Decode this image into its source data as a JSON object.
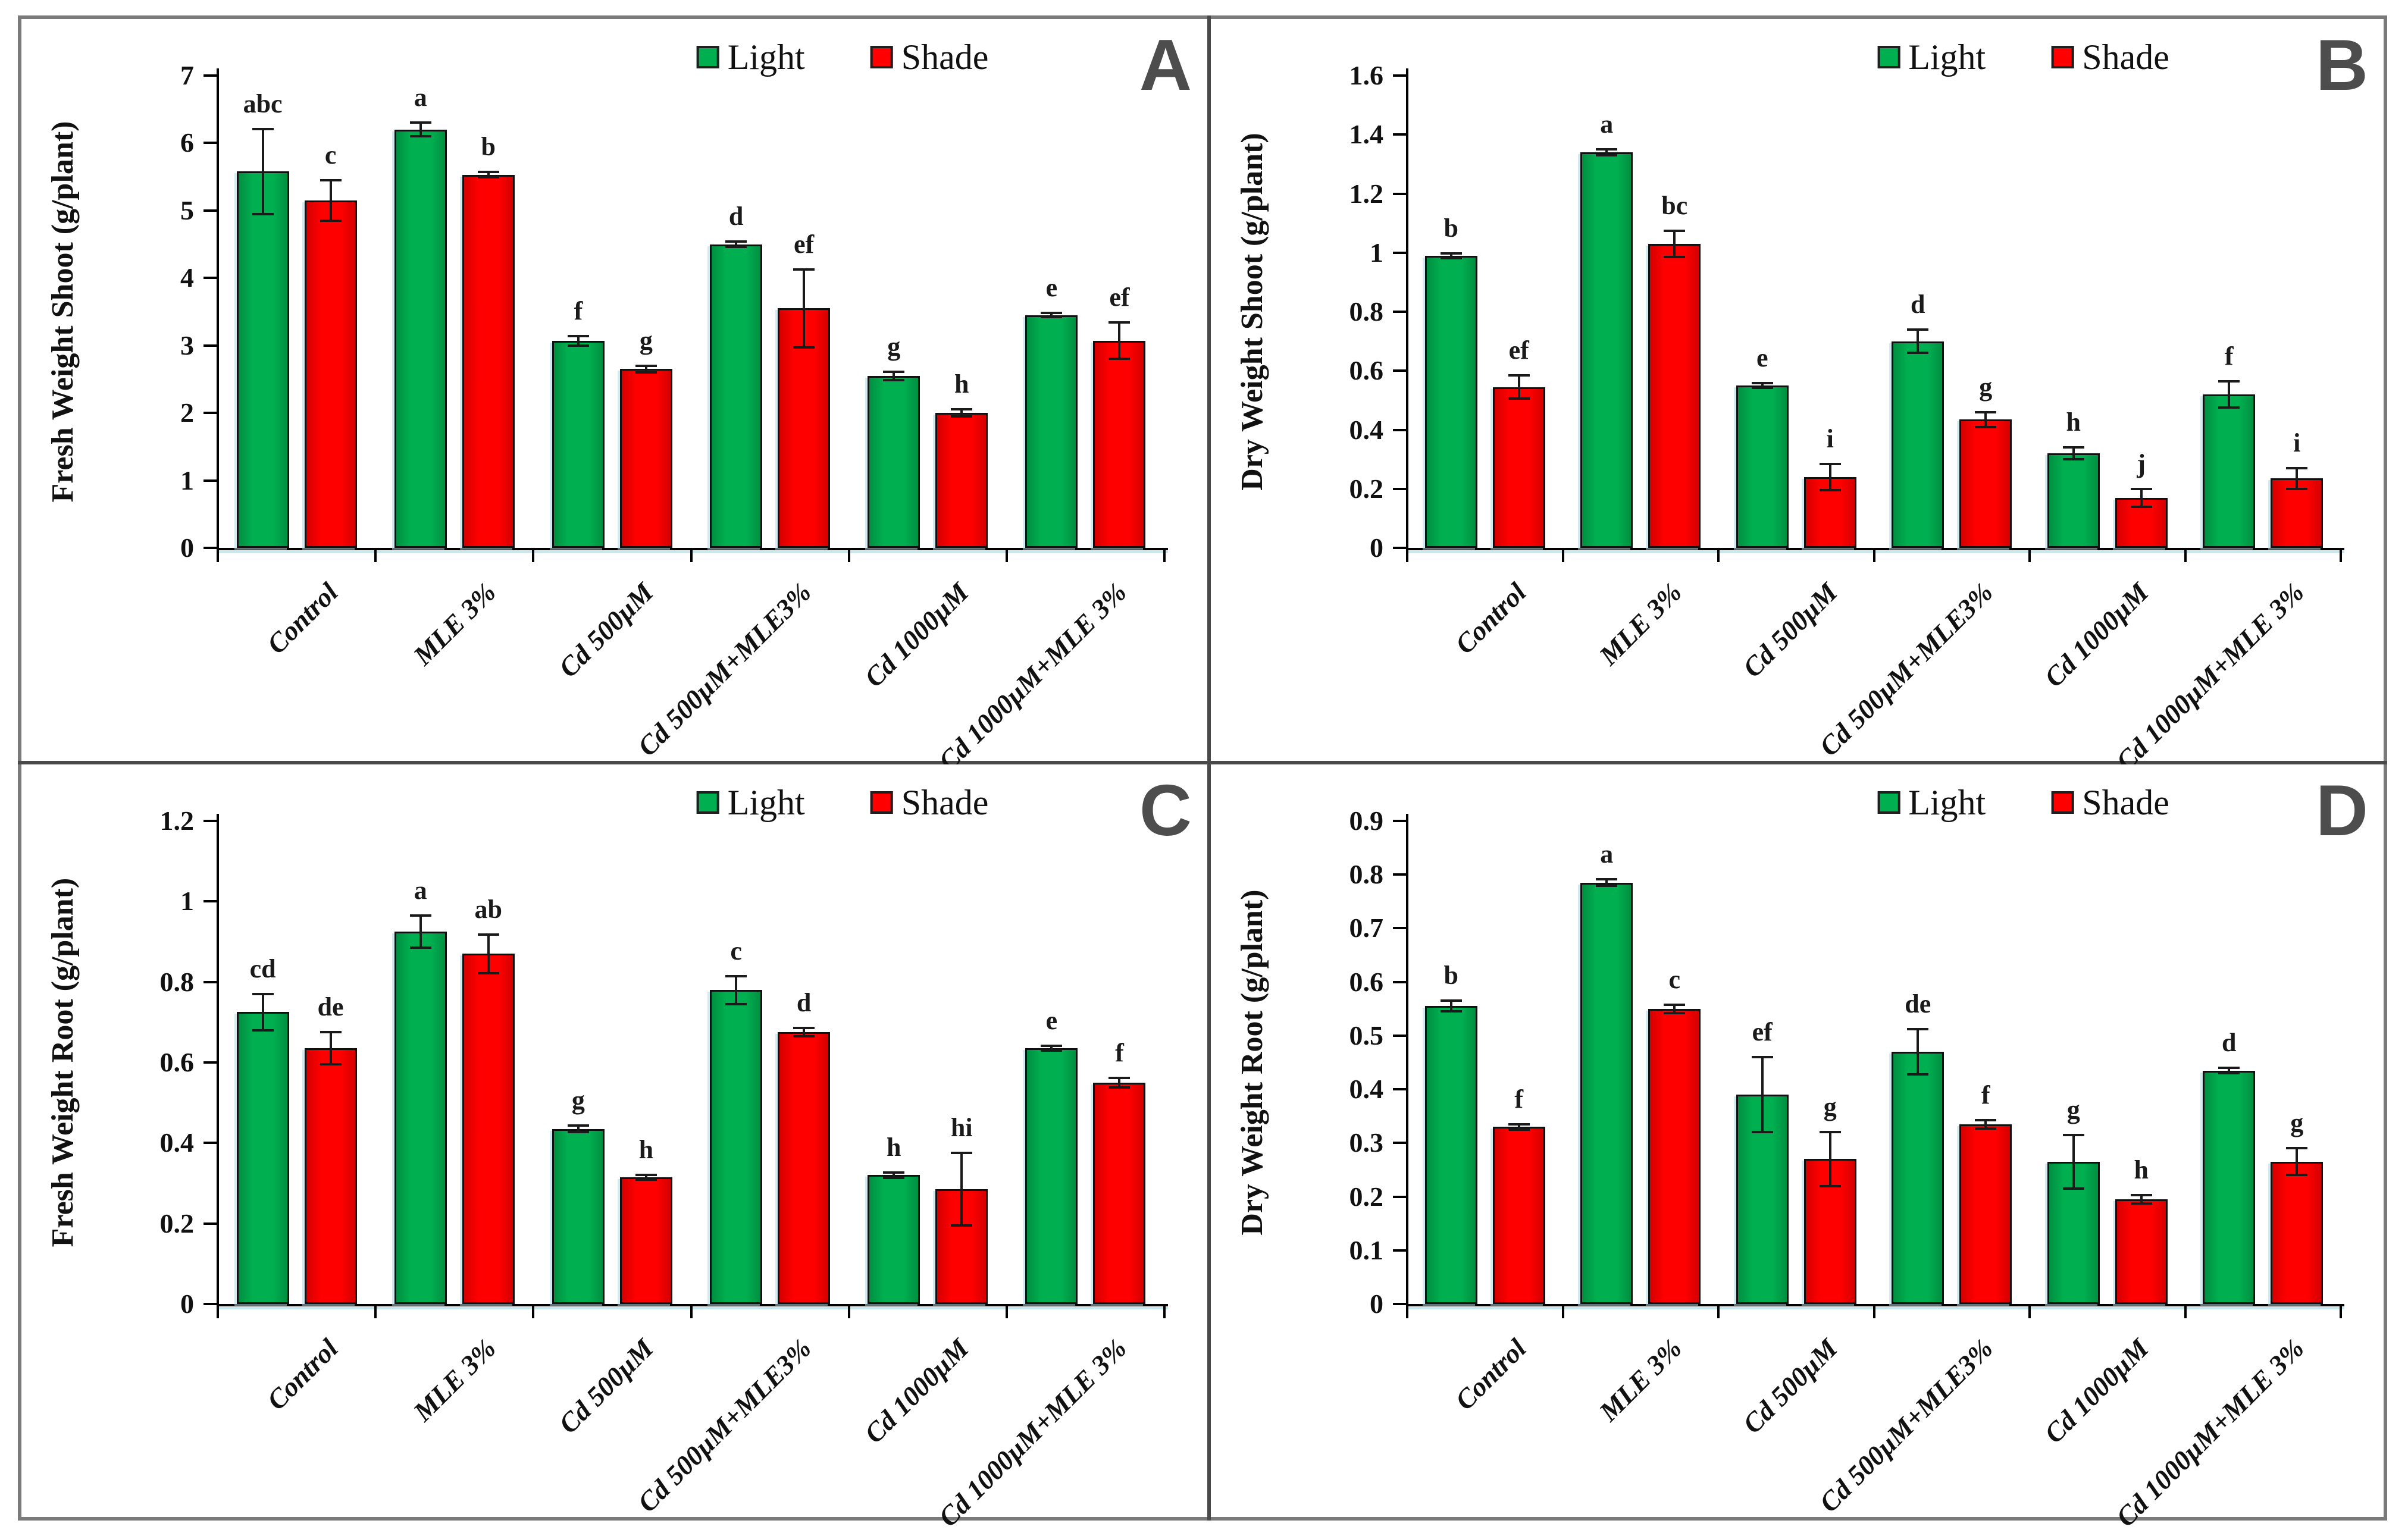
{
  "figure_title": "",
  "legend": {
    "items": [
      {
        "label": "Light",
        "color_key": "light"
      },
      {
        "label": "Shade",
        "color_key": "shade"
      }
    ]
  },
  "colors": {
    "light": "#00B050",
    "light_edge": "#008F41",
    "shade": "#FF0000",
    "shade_edge": "#D40000",
    "bar_border": "#101010",
    "axis": "#000000",
    "error_bar": "#1a1a1a",
    "panel_letter": "#4d4d4d",
    "divider": "#4a4a4a",
    "outer_border": "#7a7a7a"
  },
  "chart_data": [
    {
      "id": "A",
      "type": "bar",
      "ylabel": "Fresh Weight Shoot (g/plant)",
      "xlabel": "",
      "ylim": [
        0,
        7
      ],
      "yticks": [
        0,
        1,
        2,
        3,
        4,
        5,
        6,
        7
      ],
      "ytick_labels": [
        "0",
        "1",
        "2",
        "3",
        "4",
        "5",
        "6",
        "7"
      ],
      "grid": false,
      "legend_position": "top-center",
      "categories": [
        "Control",
        "MLE 3%",
        "Cd 500µM",
        "Cd 500µM+MLE3%",
        "Cd 1000µM",
        "Cd 1000µM+MLE 3%"
      ],
      "series": [
        {
          "name": "Light",
          "values": [
            5.58,
            6.2,
            3.07,
            4.5,
            2.55,
            3.45
          ],
          "errors": [
            0.63,
            0.1,
            0.07,
            0.04,
            0.06,
            0.03
          ],
          "letters": [
            "abc",
            "a",
            "f",
            "d",
            "g",
            "e"
          ]
        },
        {
          "name": "Shade",
          "values": [
            5.15,
            5.53,
            2.65,
            3.55,
            2.0,
            3.07
          ],
          "errors": [
            0.3,
            0.04,
            0.05,
            0.58,
            0.05,
            0.27
          ],
          "letters": [
            "c",
            "b",
            "g",
            "ef",
            "h",
            "ef"
          ]
        }
      ]
    },
    {
      "id": "B",
      "type": "bar",
      "ylabel": "Dry Weight Shoot (g/plant)",
      "xlabel": "",
      "ylim": [
        0,
        1.6
      ],
      "yticks": [
        0,
        0.2,
        0.4,
        0.6,
        0.8,
        1,
        1.2,
        1.4,
        1.6
      ],
      "ytick_labels": [
        "0",
        "0.2",
        "0.4",
        "0.6",
        "0.8",
        "1",
        "1.2",
        "1.4",
        "1.6"
      ],
      "grid": false,
      "legend_position": "top-center",
      "categories": [
        "Control",
        "MLE 3%",
        "Cd 500µM",
        "Cd 500µM+MLE3%",
        "Cd 1000µM",
        "Cd 1000µM+MLE 3%"
      ],
      "series": [
        {
          "name": "Light",
          "values": [
            0.99,
            1.34,
            0.55,
            0.7,
            0.32,
            0.52
          ],
          "errors": [
            0.008,
            0.01,
            0.008,
            0.04,
            0.02,
            0.045
          ],
          "letters": [
            "b",
            "a",
            "e",
            "d",
            "h",
            "f"
          ]
        },
        {
          "name": "Shade",
          "values": [
            0.545,
            1.03,
            0.24,
            0.435,
            0.17,
            0.235
          ],
          "errors": [
            0.04,
            0.045,
            0.045,
            0.025,
            0.03,
            0.035
          ],
          "letters": [
            "ef",
            "bc",
            "i",
            "g",
            "j",
            "i"
          ]
        }
      ]
    },
    {
      "id": "C",
      "type": "bar",
      "ylabel": "Fresh Weight Root (g/plant)",
      "xlabel": "",
      "ylim": [
        0,
        1.2
      ],
      "yticks": [
        0,
        0.2,
        0.4,
        0.6,
        0.8,
        1,
        1.2
      ],
      "ytick_labels": [
        "0",
        "0.2",
        "0.4",
        "0.6",
        "0.8",
        "1",
        "1.2"
      ],
      "grid": false,
      "legend_position": "top-center",
      "categories": [
        "Control",
        "MLE 3%",
        "Cd 500µM",
        "Cd 500µM+MLE3%",
        "Cd 1000µM",
        "Cd 1000µM+MLE 3%"
      ],
      "series": [
        {
          "name": "Light",
          "values": [
            0.725,
            0.925,
            0.435,
            0.78,
            0.32,
            0.635
          ],
          "errors": [
            0.045,
            0.04,
            0.008,
            0.035,
            0.006,
            0.006
          ],
          "letters": [
            "cd",
            "a",
            "g",
            "c",
            "h",
            "e"
          ]
        },
        {
          "name": "Shade",
          "values": [
            0.635,
            0.87,
            0.315,
            0.675,
            0.285,
            0.55
          ],
          "errors": [
            0.04,
            0.048,
            0.006,
            0.01,
            0.09,
            0.012
          ],
          "letters": [
            "de",
            "ab",
            "h",
            "d",
            "hi",
            "f"
          ]
        }
      ]
    },
    {
      "id": "D",
      "type": "bar",
      "ylabel": "Dry Weight Root (g/plant)",
      "xlabel": "",
      "ylim": [
        0,
        0.9
      ],
      "yticks": [
        0,
        0.1,
        0.2,
        0.3,
        0.4,
        0.5,
        0.6,
        0.7,
        0.8,
        0.9
      ],
      "ytick_labels": [
        "0",
        "0.1",
        "0.2",
        "0.3",
        "0.4",
        "0.5",
        "0.6",
        "0.7",
        "0.8",
        "0.9"
      ],
      "grid": false,
      "legend_position": "top-center",
      "categories": [
        "Control",
        "MLE 3%",
        "Cd 500µM",
        "Cd 500µM+MLE3%",
        "Cd 1000µM",
        "Cd 1000µM+MLE 3%"
      ],
      "series": [
        {
          "name": "Light",
          "values": [
            0.555,
            0.785,
            0.39,
            0.47,
            0.265,
            0.435
          ],
          "errors": [
            0.01,
            0.006,
            0.07,
            0.042,
            0.05,
            0.005
          ],
          "letters": [
            "b",
            "a",
            "ef",
            "de",
            "g",
            "d"
          ]
        },
        {
          "name": "Shade",
          "values": [
            0.33,
            0.55,
            0.27,
            0.335,
            0.195,
            0.265
          ],
          "errors": [
            0.005,
            0.008,
            0.05,
            0.008,
            0.008,
            0.025
          ],
          "letters": [
            "f",
            "c",
            "g",
            "f",
            "h",
            "g"
          ]
        }
      ]
    }
  ]
}
